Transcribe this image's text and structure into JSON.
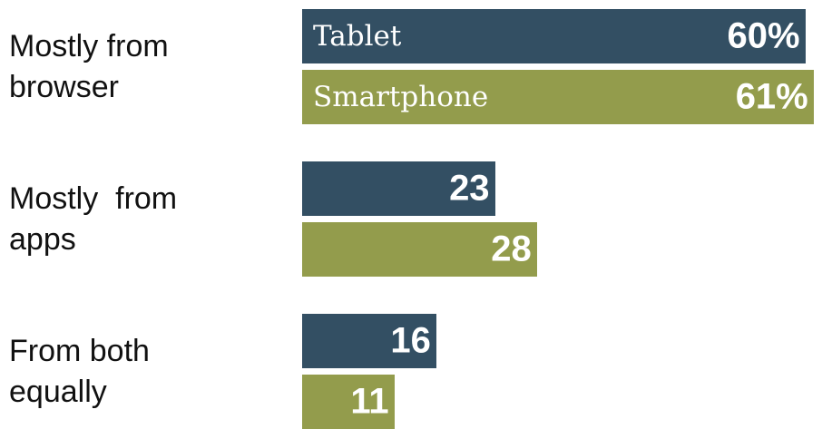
{
  "chart_data": {
    "type": "bar",
    "orientation": "horizontal",
    "categories": [
      "Mostly from browser",
      "Mostly  from apps",
      "From both equally"
    ],
    "series": [
      {
        "name": "Tablet",
        "color": "#334f63",
        "values": [
          60,
          23,
          16
        ],
        "value_labels": [
          "60%",
          "23",
          "16"
        ]
      },
      {
        "name": "Smartphone",
        "color": "#939c4c",
        "values": [
          61,
          28,
          11
        ],
        "value_labels": [
          "61%",
          "28",
          "11"
        ]
      }
    ],
    "xlim": [
      0,
      62
    ]
  }
}
